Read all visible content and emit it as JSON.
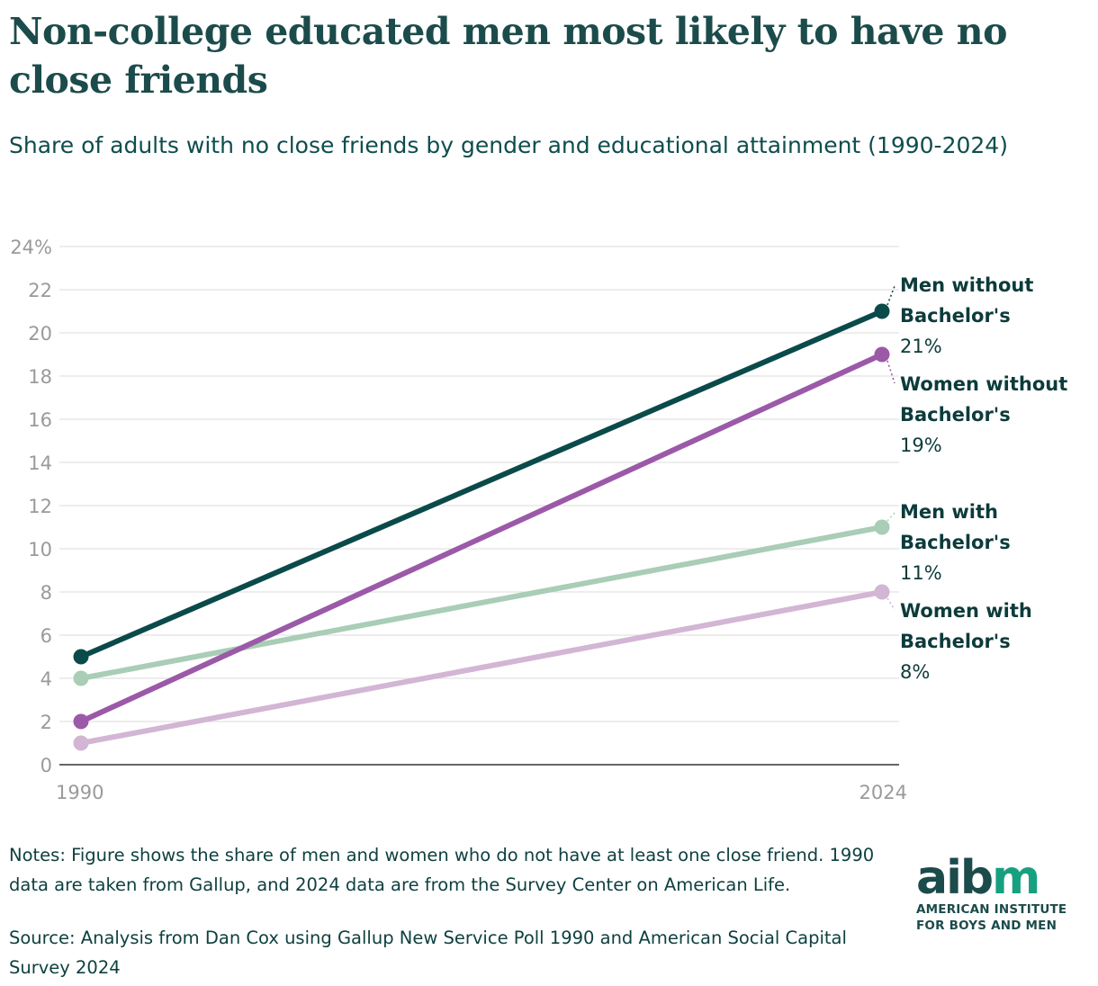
{
  "title": "Non-college educated men most likely to have no close friends",
  "subtitle": "Share of adults with no close friends by gender and educational attainment (1990-2024)",
  "notes": "Notes: Figure shows the share of men and women who do not have at least one close friend. 1990 data are taken from Gallup, and 2024 data are from the Survey Center on American Life.",
  "source": "Source: Analysis from Dan Cox using Gallup New Service Poll 1990 and American Social Capital Survey 2024",
  "logo": {
    "word_a": "aib",
    "word_b": "m",
    "line1": "AMERICAN INSTITUTE",
    "line2": "FOR BOYS AND MEN"
  },
  "chart_data": {
    "type": "line",
    "title": "Non-college educated men most likely to have no close friends",
    "xlabel": "",
    "ylabel": "",
    "x": [
      "1990",
      "2024"
    ],
    "ylim": [
      0,
      24
    ],
    "y_ticks": [
      0,
      2,
      4,
      6,
      8,
      10,
      12,
      14,
      16,
      18,
      20,
      22,
      24
    ],
    "y_tick_labels": [
      "0",
      "2",
      "4",
      "6",
      "8",
      "10",
      "12",
      "14",
      "16",
      "18",
      "20",
      "22",
      "24%"
    ],
    "grid": true,
    "series": [
      {
        "name": "Men without Bachelor's",
        "label_lines": [
          "Men without",
          "Bachelor's"
        ],
        "value_label": "21%",
        "values": [
          5,
          21
        ],
        "color": "#0b4a4a"
      },
      {
        "name": "Women without Bachelor's",
        "label_lines": [
          "Women without",
          "Bachelor's"
        ],
        "value_label": "19%",
        "values": [
          2,
          19
        ],
        "color": "#9b59a8"
      },
      {
        "name": "Men with Bachelor's",
        "label_lines": [
          "Men with",
          "Bachelor's"
        ],
        "value_label": "11%",
        "values": [
          4,
          11
        ],
        "color": "#a9cdb6"
      },
      {
        "name": "Women with Bachelor's",
        "label_lines": [
          "Women with",
          "Bachelor's"
        ],
        "value_label": "8%",
        "values": [
          1,
          8
        ],
        "color": "#d2b6d4"
      }
    ]
  }
}
